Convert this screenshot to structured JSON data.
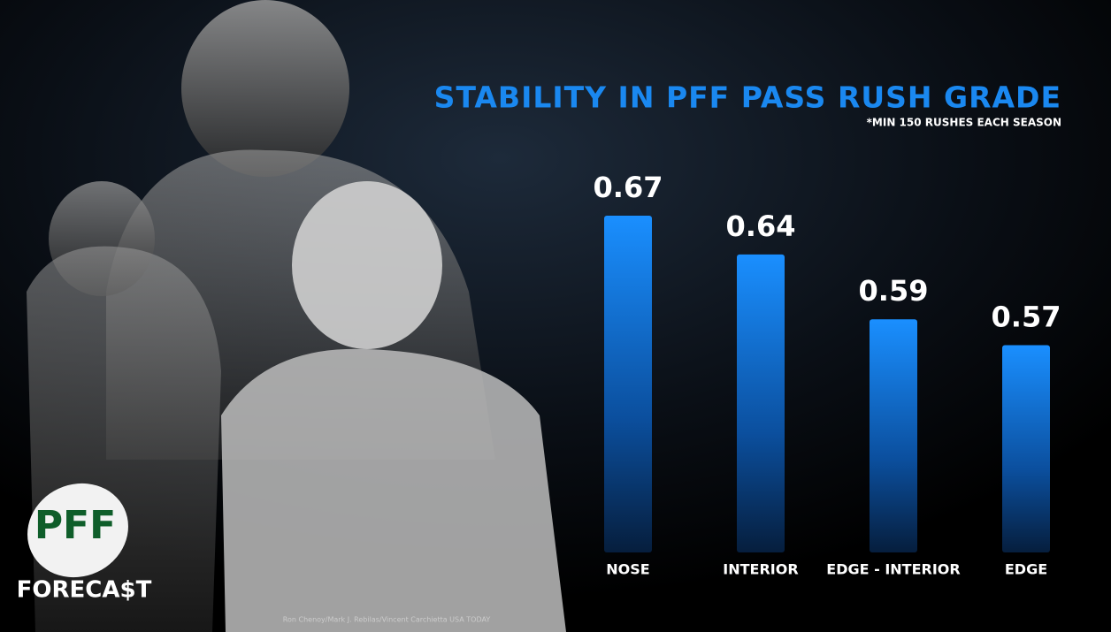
{
  "chart_data": {
    "type": "bar",
    "title": "STABILITY IN PFF PASS RUSH GRADE",
    "subtitle": "*MIN 150 RUSHES EACH SEASON",
    "categories": [
      "NOSE",
      "INTERIOR",
      "EDGE - INTERIOR",
      "EDGE"
    ],
    "values": [
      0.67,
      0.64,
      0.59,
      0.57
    ],
    "color": "#1688f5",
    "ylim": [
      0.41,
      0.7
    ],
    "grid": false
  },
  "logo": {
    "top": "PFF",
    "bottom": "FORECA$T"
  },
  "credit": "Ron Chenoy/Mark J. Rebilas/Vincent Carchietta USA TODAY"
}
